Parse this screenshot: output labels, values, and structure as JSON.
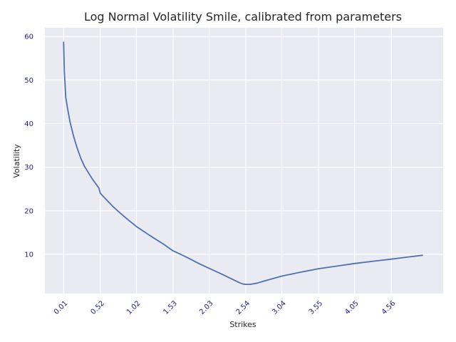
{
  "chart_data": {
    "type": "line",
    "title": "Log Normal Volatility Smile, calibrated from parameters",
    "xlabel": "Strikes",
    "ylabel": "Volatility",
    "xlim": [
      -0.25,
      5.28
    ],
    "ylim": [
      1.0,
      62.0
    ],
    "xticks": [
      "0.01",
      "0.52",
      "1.02",
      "1.53",
      "2.03",
      "2.54",
      "3.04",
      "3.55",
      "4.05",
      "4.56"
    ],
    "yticks": [
      10,
      20,
      30,
      40,
      50,
      60
    ],
    "grid": true,
    "colors": {
      "background": "#eaeaf2",
      "grid": "#ffffff",
      "line": "#4c72b0"
    },
    "series": [
      {
        "name": "",
        "x": [
          0.01,
          0.02,
          0.04,
          0.07,
          0.1,
          0.15,
          0.2,
          0.25,
          0.3,
          0.4,
          0.5,
          0.52,
          0.6,
          0.7,
          0.8,
          0.9,
          1.02,
          1.2,
          1.4,
          1.53,
          1.7,
          1.9,
          2.03,
          2.2,
          2.35,
          2.45,
          2.5,
          2.54,
          2.6,
          2.7,
          2.8,
          3.04,
          3.3,
          3.55,
          3.8,
          4.05,
          4.3,
          4.56,
          4.8,
          5.0
        ],
        "y": [
          58.8,
          52.0,
          46.0,
          43.0,
          40.3,
          37.0,
          34.3,
          32.0,
          30.2,
          27.5,
          25.2,
          24.0,
          22.6,
          20.9,
          19.4,
          18.0,
          16.4,
          14.4,
          12.3,
          10.8,
          9.5,
          7.8,
          6.8,
          5.5,
          4.3,
          3.5,
          3.2,
          3.1,
          3.1,
          3.4,
          3.9,
          5.0,
          5.9,
          6.7,
          7.3,
          7.9,
          8.4,
          8.9,
          9.4,
          9.8
        ]
      }
    ]
  }
}
